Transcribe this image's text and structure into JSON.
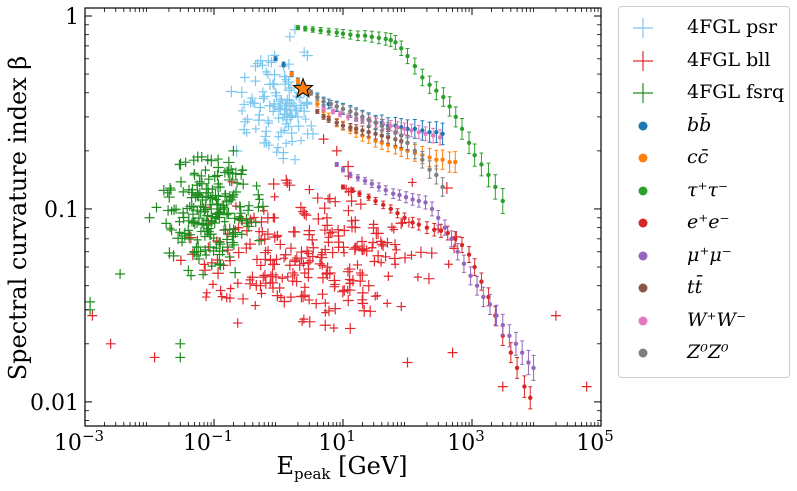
{
  "chart_data": {
    "type": "scatter",
    "xlabel_main": "E",
    "xlabel_sub": "peak",
    "xlabel_unit": " [GeV]",
    "ylabel": "Spectral curvature index β",
    "xscale": "log",
    "yscale": "log",
    "xlim": [
      0.001,
      100000
    ],
    "ylim": [
      0.0075,
      1.1
    ],
    "x_tick_base": "10",
    "x_ticks": [
      {
        "value": 0.001,
        "exp": "−3"
      },
      {
        "value": 0.1,
        "exp": "−1"
      },
      {
        "value": 10,
        "exp": "1"
      },
      {
        "value": 1000,
        "exp": "3"
      },
      {
        "value": 100000,
        "exp": "5"
      }
    ],
    "y_ticks": [
      {
        "value": 1,
        "label": "1"
      },
      {
        "value": 0.1,
        "label": "0.1"
      },
      {
        "value": 0.01,
        "label": "0.01"
      }
    ],
    "marker_point": {
      "name": "star",
      "x": 2.4,
      "y": 0.42,
      "color": "#ff7f0e"
    },
    "series": [
      {
        "name": "4FGL psr",
        "marker": "plus",
        "color": "#7ec8f0",
        "seed": 11,
        "n": 110,
        "x_log_range": [
          -0.9,
          0.85
        ],
        "y_log_range": [
          -0.9,
          -0.08
        ],
        "points": [
          [
            0.3,
            0.48
          ],
          [
            1.5,
            0.78
          ],
          [
            1.8,
            0.85
          ],
          [
            2.5,
            0.65
          ],
          [
            1.2,
            0.55
          ],
          [
            0.9,
            0.4
          ],
          [
            2.0,
            0.3
          ],
          [
            1.1,
            0.25
          ],
          [
            0.6,
            0.22
          ],
          [
            1.8,
            0.18
          ]
        ]
      },
      {
        "name": "4FGL bll",
        "marker": "plus",
        "color": "#e3272d",
        "seed": 23,
        "n": 260,
        "x_log_range": [
          -2.2,
          3.2
        ],
        "y_log_range": [
          -1.75,
          -0.72
        ],
        "points": [
          [
            0.0025,
            0.02
          ],
          [
            0.012,
            0.017
          ],
          [
            0.0013,
            0.028
          ],
          [
            100,
            0.016
          ],
          [
            500,
            0.018
          ],
          [
            60000,
            0.012
          ],
          [
            20000,
            0.028
          ],
          [
            3000,
            0.012
          ],
          [
            5,
            0.23
          ],
          [
            8,
            0.2
          ]
        ]
      },
      {
        "name": "4FGL fsrq",
        "marker": "plus",
        "color": "#1f8c1f",
        "seed": 37,
        "n": 200,
        "x_log_range": [
          -2.1,
          0.05
        ],
        "y_log_range": [
          -1.45,
          -0.6
        ],
        "points": [
          [
            0.0012,
            0.033
          ],
          [
            0.0012,
            0.03
          ],
          [
            0.0035,
            0.046
          ],
          [
            0.01,
            0.09
          ],
          [
            0.03,
            0.02
          ],
          [
            0.03,
            0.017
          ],
          [
            0.05,
            0.15
          ],
          [
            0.08,
            0.18
          ],
          [
            0.04,
            0.048
          ],
          [
            0.2,
            0.2
          ]
        ]
      },
      {
        "name": "bb̄",
        "marker": "errdot",
        "color": "#1f77b4",
        "points": [
          [
            0.9,
            0.6
          ],
          [
            1.2,
            0.56
          ],
          [
            1.6,
            0.5
          ],
          [
            2.0,
            0.46
          ],
          [
            2.5,
            0.43
          ],
          [
            3,
            0.41
          ],
          [
            4,
            0.38
          ],
          [
            5,
            0.36
          ],
          [
            6,
            0.35
          ],
          [
            8,
            0.34
          ],
          [
            10,
            0.33
          ],
          [
            13,
            0.32
          ],
          [
            16,
            0.31
          ],
          [
            20,
            0.3
          ],
          [
            25,
            0.29
          ],
          [
            32,
            0.28
          ],
          [
            40,
            0.28
          ],
          [
            50,
            0.27
          ],
          [
            65,
            0.27
          ],
          [
            80,
            0.265
          ],
          [
            100,
            0.26
          ],
          [
            130,
            0.26
          ],
          [
            170,
            0.255
          ],
          [
            220,
            0.25
          ],
          [
            280,
            0.25
          ],
          [
            350,
            0.245
          ]
        ]
      },
      {
        "name": "cc̄",
        "marker": "errdot",
        "color": "#ff7f0e",
        "points": [
          [
            1.6,
            0.5
          ],
          [
            2.0,
            0.46
          ],
          [
            3,
            0.4
          ],
          [
            4,
            0.35
          ],
          [
            5,
            0.32
          ],
          [
            6,
            0.3
          ],
          [
            8,
            0.28
          ],
          [
            10,
            0.27
          ],
          [
            13,
            0.26
          ],
          [
            16,
            0.25
          ],
          [
            20,
            0.24
          ],
          [
            25,
            0.235
          ],
          [
            32,
            0.225
          ],
          [
            40,
            0.22
          ],
          [
            50,
            0.215
          ],
          [
            65,
            0.21
          ],
          [
            80,
            0.205
          ],
          [
            100,
            0.2
          ],
          [
            130,
            0.195
          ],
          [
            170,
            0.19
          ],
          [
            220,
            0.185
          ],
          [
            280,
            0.18
          ],
          [
            350,
            0.18
          ],
          [
            450,
            0.175
          ],
          [
            550,
            0.175
          ]
        ]
      },
      {
        "name": "τ⁺τ⁻",
        "marker": "errdot",
        "color": "#2ca02c",
        "points": [
          [
            2,
            0.87
          ],
          [
            2.6,
            0.86
          ],
          [
            3.4,
            0.85
          ],
          [
            4.5,
            0.84
          ],
          [
            6,
            0.83
          ],
          [
            8,
            0.82
          ],
          [
            10,
            0.81
          ],
          [
            13,
            0.8
          ],
          [
            17,
            0.79
          ],
          [
            22,
            0.79
          ],
          [
            28,
            0.78
          ],
          [
            36,
            0.77
          ],
          [
            46,
            0.76
          ],
          [
            55,
            0.75
          ],
          [
            65,
            0.73
          ],
          [
            80,
            0.68
          ],
          [
            100,
            0.62
          ],
          [
            130,
            0.55
          ],
          [
            170,
            0.48
          ],
          [
            220,
            0.44
          ],
          [
            280,
            0.41
          ],
          [
            360,
            0.38
          ],
          [
            450,
            0.34
          ],
          [
            560,
            0.3
          ],
          [
            700,
            0.26
          ],
          [
            900,
            0.22
          ],
          [
            1100,
            0.19
          ],
          [
            1400,
            0.17
          ],
          [
            1800,
            0.15
          ],
          [
            2300,
            0.13
          ],
          [
            3000,
            0.11
          ]
        ]
      },
      {
        "name": "e⁺e⁻",
        "marker": "errdot",
        "color": "#d62728",
        "points": [
          [
            10,
            0.13
          ],
          [
            14,
            0.125
          ],
          [
            18,
            0.12
          ],
          [
            25,
            0.115
          ],
          [
            32,
            0.11
          ],
          [
            42,
            0.105
          ],
          [
            55,
            0.1
          ],
          [
            70,
            0.095
          ],
          [
            90,
            0.09
          ],
          [
            120,
            0.085
          ],
          [
            150,
            0.083
          ],
          [
            200,
            0.08
          ],
          [
            260,
            0.078
          ],
          [
            330,
            0.077
          ],
          [
            420,
            0.075
          ],
          [
            550,
            0.07
          ],
          [
            700,
            0.065
          ],
          [
            900,
            0.058
          ],
          [
            1100,
            0.05
          ],
          [
            1400,
            0.042
          ],
          [
            1800,
            0.035
          ],
          [
            2300,
            0.028
          ],
          [
            3000,
            0.022
          ],
          [
            4000,
            0.018
          ],
          [
            5000,
            0.015
          ],
          [
            6500,
            0.012
          ],
          [
            8000,
            0.0105
          ]
        ]
      },
      {
        "name": "μ⁺μ⁻",
        "marker": "errdot",
        "color": "#9467bd",
        "points": [
          [
            8,
            0.17
          ],
          [
            10,
            0.16
          ],
          [
            13,
            0.15
          ],
          [
            17,
            0.145
          ],
          [
            22,
            0.14
          ],
          [
            28,
            0.135
          ],
          [
            36,
            0.13
          ],
          [
            46,
            0.125
          ],
          [
            60,
            0.12
          ],
          [
            75,
            0.118
          ],
          [
            95,
            0.115
          ],
          [
            120,
            0.112
          ],
          [
            150,
            0.11
          ],
          [
            190,
            0.108
          ],
          [
            240,
            0.1
          ],
          [
            300,
            0.09
          ],
          [
            380,
            0.08
          ],
          [
            480,
            0.07
          ],
          [
            600,
            0.06
          ],
          [
            750,
            0.052
          ],
          [
            950,
            0.045
          ],
          [
            1200,
            0.04
          ],
          [
            1500,
            0.035
          ],
          [
            1900,
            0.032
          ],
          [
            2400,
            0.028
          ],
          [
            3000,
            0.025
          ],
          [
            3800,
            0.022
          ],
          [
            4800,
            0.02
          ],
          [
            6000,
            0.018
          ],
          [
            7500,
            0.016
          ],
          [
            9000,
            0.015
          ]
        ]
      },
      {
        "name": "tt̄",
        "marker": "errdot",
        "color": "#8c564b",
        "points": [
          [
            4,
            0.32
          ],
          [
            5,
            0.3
          ],
          [
            6,
            0.29
          ],
          [
            8,
            0.28
          ],
          [
            10,
            0.27
          ],
          [
            13,
            0.265
          ],
          [
            16,
            0.26
          ],
          [
            20,
            0.255
          ],
          [
            25,
            0.25
          ],
          [
            32,
            0.245
          ],
          [
            40,
            0.24
          ],
          [
            50,
            0.235
          ],
          [
            65,
            0.23
          ],
          [
            80,
            0.225
          ],
          [
            100,
            0.22
          ]
        ]
      },
      {
        "name": "W⁺W⁻",
        "marker": "errdot",
        "color": "#e377c2",
        "points": [
          [
            5,
            0.33
          ],
          [
            7,
            0.32
          ],
          [
            9,
            0.31
          ],
          [
            12,
            0.3
          ],
          [
            16,
            0.295
          ],
          [
            20,
            0.29
          ],
          [
            26,
            0.285
          ],
          [
            33,
            0.28
          ],
          [
            42,
            0.275
          ],
          [
            55,
            0.27
          ],
          [
            70,
            0.265
          ],
          [
            90,
            0.26
          ],
          [
            115,
            0.255
          ],
          [
            150,
            0.25
          ],
          [
            190,
            0.245
          ],
          [
            250,
            0.24
          ],
          [
            320,
            0.235
          ]
        ]
      },
      {
        "name": "Z⁰Z⁰",
        "marker": "errdot",
        "color": "#7f7f7f",
        "points": [
          [
            2.5,
            0.42
          ],
          [
            3.2,
            0.4
          ],
          [
            4,
            0.38
          ],
          [
            5,
            0.36
          ],
          [
            6.5,
            0.35
          ],
          [
            8,
            0.34
          ],
          [
            10,
            0.33
          ],
          [
            13,
            0.32
          ],
          [
            16,
            0.31
          ],
          [
            20,
            0.3
          ],
          [
            25,
            0.29
          ],
          [
            32,
            0.28
          ],
          [
            40,
            0.27
          ],
          [
            50,
            0.26
          ],
          [
            65,
            0.25
          ],
          [
            80,
            0.24
          ],
          [
            100,
            0.22
          ],
          [
            130,
            0.2
          ],
          [
            170,
            0.18
          ],
          [
            220,
            0.16
          ],
          [
            280,
            0.15
          ],
          [
            350,
            0.13
          ]
        ]
      }
    ]
  }
}
